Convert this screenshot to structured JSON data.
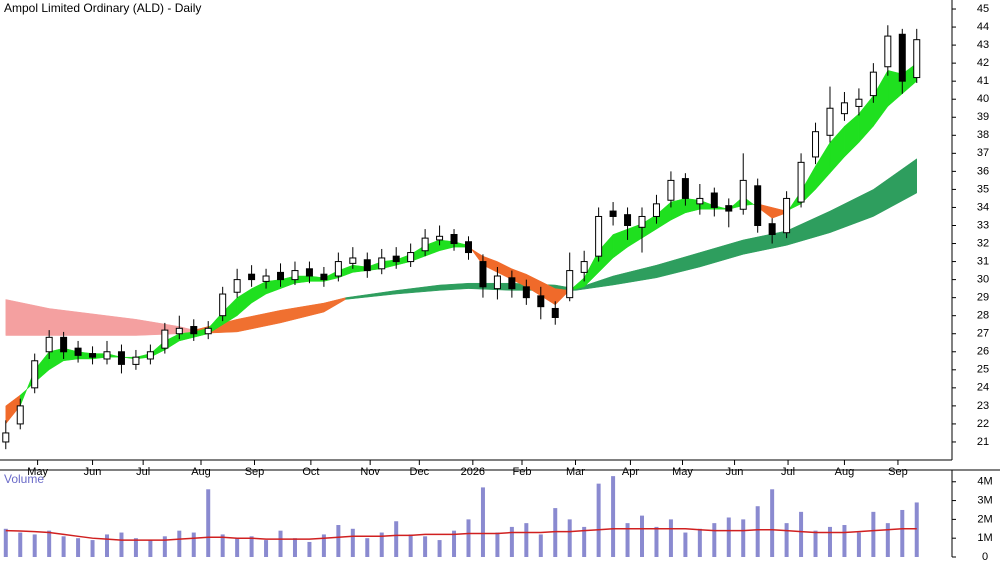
{
  "chart_data": {
    "type": "candlestick",
    "title": "Ampol Limited Ordinary (ALD) - Daily",
    "xlim": [
      -0.4,
      65.3
    ],
    "xticks": [
      {
        "value": 2.2,
        "label": "May"
      },
      {
        "value": 6.0,
        "label": "Jun"
      },
      {
        "value": 9.5,
        "label": "Jul"
      },
      {
        "value": 13.5,
        "label": "Aug"
      },
      {
        "value": 17.2,
        "label": "Sep"
      },
      {
        "value": 21.1,
        "label": "Oct"
      },
      {
        "value": 25.2,
        "label": "Nov"
      },
      {
        "value": 28.6,
        "label": "Dec"
      },
      {
        "value": 32.3,
        "label": "2026"
      },
      {
        "value": 35.7,
        "label": "Feb"
      },
      {
        "value": 39.4,
        "label": "Mar"
      },
      {
        "value": 43.2,
        "label": "Apr"
      },
      {
        "value": 46.8,
        "label": "May"
      },
      {
        "value": 50.4,
        "label": "Jun"
      },
      {
        "value": 54.1,
        "label": "Jul"
      },
      {
        "value": 58.0,
        "label": "Aug"
      },
      {
        "value": 61.7,
        "label": "Sep"
      }
    ],
    "ylim": [
      20,
      45.5
    ],
    "yticks": [
      21,
      22,
      23,
      24,
      25,
      26,
      27,
      28,
      29,
      30,
      31,
      32,
      33,
      34,
      35,
      36,
      37,
      38,
      39,
      40,
      41,
      42,
      43,
      44,
      45
    ],
    "open": [
      21.0,
      22.0,
      24.0,
      26.0,
      26.8,
      26.2,
      25.9,
      25.6,
      26.0,
      25.3,
      25.6,
      26.2,
      27.0,
      27.4,
      27.0,
      28.0,
      29.3,
      30.3,
      29.9,
      30.4,
      30.0,
      30.6,
      30.3,
      30.2,
      30.9,
      31.1,
      30.6,
      31.3,
      31.0,
      31.6,
      32.2,
      32.5,
      32.1,
      31.0,
      29.5,
      30.1,
      29.6,
      29.1,
      28.4,
      29.0,
      30.4,
      31.3,
      33.8,
      33.6,
      32.9,
      33.5,
      34.4,
      35.6,
      34.2,
      34.8,
      34.1,
      33.9,
      35.2,
      33.1,
      32.6,
      34.3,
      36.8,
      38.0,
      39.2,
      39.6,
      40.2,
      41.8,
      43.6,
      41.2
    ],
    "high": [
      22.2,
      23.4,
      25.9,
      27.2,
      27.1,
      26.6,
      26.3,
      26.6,
      26.4,
      26.1,
      26.4,
      27.6,
      28.0,
      27.8,
      27.7,
      29.6,
      30.6,
      30.8,
      30.6,
      30.9,
      31.0,
      31.0,
      30.7,
      31.5,
      31.8,
      31.5,
      31.7,
      31.8,
      32.0,
      32.8,
      33.0,
      32.8,
      32.4,
      31.4,
      30.7,
      30.5,
      30.0,
      29.6,
      28.8,
      31.5,
      31.6,
      34.0,
      34.3,
      34.0,
      34.0,
      34.7,
      36.0,
      35.9,
      35.3,
      35.1,
      34.5,
      37.0,
      35.6,
      33.4,
      34.9,
      37.0,
      38.7,
      40.7,
      40.4,
      40.6,
      42.0,
      44.1,
      43.9,
      43.9
    ],
    "low": [
      20.6,
      21.7,
      23.7,
      25.6,
      25.6,
      25.4,
      25.3,
      25.3,
      24.8,
      25.0,
      25.3,
      25.9,
      26.7,
      26.6,
      26.7,
      27.7,
      29.0,
      29.6,
      29.5,
      29.6,
      29.7,
      29.8,
      29.6,
      29.9,
      30.6,
      30.1,
      30.3,
      30.6,
      30.7,
      31.3,
      31.9,
      31.6,
      31.1,
      29.0,
      28.9,
      29.0,
      28.6,
      27.8,
      27.5,
      28.8,
      29.9,
      31.0,
      33.0,
      32.2,
      31.5,
      33.1,
      34.0,
      34.1,
      33.6,
      33.5,
      32.9,
      33.6,
      32.6,
      32.0,
      32.3,
      34.0,
      36.4,
      37.6,
      38.8,
      39.1,
      39.8,
      41.3,
      40.3,
      40.9
    ],
    "close": [
      21.5,
      23.0,
      25.5,
      26.8,
      26.0,
      25.8,
      25.7,
      26.0,
      25.3,
      25.7,
      26.0,
      27.2,
      27.3,
      27.0,
      27.3,
      29.2,
      30.0,
      30.0,
      30.2,
      30.0,
      30.5,
      30.2,
      30.0,
      31.0,
      31.2,
      30.5,
      31.2,
      31.0,
      31.5,
      32.3,
      32.4,
      32.0,
      31.5,
      29.6,
      30.2,
      29.5,
      29.0,
      28.5,
      27.9,
      30.5,
      31.0,
      33.5,
      33.5,
      33.0,
      33.5,
      34.2,
      35.5,
      34.5,
      34.5,
      34.0,
      33.8,
      35.5,
      33.0,
      32.5,
      34.5,
      36.5,
      38.2,
      39.5,
      39.8,
      40.0,
      41.5,
      43.5,
      41.0,
      43.3
    ],
    "short_ribbon": {
      "color_up": "#1fe01f",
      "color_down": "#f06a2a",
      "fast": [
        22.0,
        23.0,
        25.0,
        26.0,
        26.2,
        26.0,
        25.9,
        25.9,
        25.7,
        25.7,
        25.9,
        26.6,
        27.0,
        27.1,
        27.3,
        28.2,
        29.0,
        29.5,
        29.9,
        30.0,
        30.2,
        30.2,
        30.1,
        30.5,
        30.8,
        30.7,
        31.0,
        31.1,
        31.4,
        31.9,
        32.2,
        32.1,
        31.9,
        30.8,
        30.4,
        30.0,
        29.6,
        29.1,
        28.6,
        29.4,
        30.1,
        31.6,
        32.5,
        32.8,
        33.1,
        33.6,
        34.3,
        34.5,
        34.4,
        34.1,
        33.9,
        34.6,
        34.0,
        33.4,
        33.7,
        34.9,
        36.3,
        37.6,
        38.5,
        39.2,
        40.2,
        41.6,
        41.4,
        42.0
      ],
      "slow": [
        23.0,
        23.6,
        24.3,
        25.0,
        25.5,
        25.6,
        25.6,
        25.7,
        25.7,
        25.6,
        25.7,
        26.1,
        26.6,
        26.8,
        27.0,
        27.5,
        28.0,
        28.7,
        29.2,
        29.5,
        29.8,
        29.9,
        29.9,
        30.1,
        30.4,
        30.5,
        30.6,
        30.8,
        31.0,
        31.3,
        31.6,
        31.8,
        31.8,
        31.3,
        31.0,
        30.6,
        30.3,
        29.9,
        29.5,
        29.4,
        29.6,
        30.4,
        31.2,
        31.8,
        32.3,
        32.8,
        33.3,
        33.7,
        33.9,
        33.9,
        33.9,
        34.1,
        34.2,
        34.0,
        33.8,
        34.2,
        35.0,
        35.9,
        36.8,
        37.6,
        38.5,
        39.6,
        40.3,
        41.0
      ]
    },
    "long_ribbon": [
      {
        "color": "#f4a0a0",
        "x": [
          0,
          3,
          6,
          9,
          12,
          13
        ],
        "upper": [
          28.9,
          28.4,
          28.1,
          27.8,
          27.4,
          27.2
        ],
        "lower": [
          26.9,
          26.9,
          26.9,
          26.9,
          27.0,
          27.0
        ]
      },
      {
        "color": "#f07030",
        "x": [
          13,
          16,
          19,
          22,
          23.5
        ],
        "upper": [
          27.2,
          27.8,
          28.3,
          28.7,
          29.0
        ],
        "lower": [
          27.0,
          27.1,
          27.6,
          28.2,
          28.9
        ]
      },
      {
        "color": "#2e9e5e",
        "x": [
          23.5,
          27,
          30,
          32,
          35,
          38,
          39.4,
          42,
          45,
          48,
          51,
          54,
          57,
          60,
          63
        ],
        "upper": [
          29.0,
          29.4,
          29.7,
          29.8,
          29.8,
          29.7,
          29.5,
          30.2,
          30.8,
          31.5,
          32.2,
          32.7,
          33.8,
          35.0,
          36.7
        ],
        "lower": [
          28.9,
          29.2,
          29.4,
          29.5,
          29.4,
          29.4,
          29.4,
          29.7,
          30.1,
          30.7,
          31.4,
          31.9,
          32.6,
          33.5,
          34.8
        ]
      }
    ],
    "volume": {
      "label": "Volume",
      "color": "#8a8ad0",
      "ylim": [
        0,
        4200000
      ],
      "yticks": [
        {
          "value": 0,
          "label": "0"
        },
        {
          "value": 1000000,
          "label": "1M"
        },
        {
          "value": 2000000,
          "label": "2M"
        },
        {
          "value": 3000000,
          "label": "3M"
        },
        {
          "value": 4000000,
          "label": "4M"
        }
      ],
      "values": [
        1500000,
        1300000,
        1200000,
        1400000,
        1100000,
        1000000,
        900000,
        1200000,
        1300000,
        1000000,
        900000,
        1100000,
        1400000,
        1300000,
        3600000,
        1200000,
        1000000,
        1100000,
        900000,
        1400000,
        1000000,
        800000,
        1200000,
        1700000,
        1500000,
        1000000,
        1300000,
        1900000,
        1200000,
        1100000,
        900000,
        1400000,
        2000000,
        3700000,
        1300000,
        1600000,
        1800000,
        1200000,
        2600000,
        2000000,
        1600000,
        3900000,
        4300000,
        1800000,
        2200000,
        1600000,
        2000000,
        1300000,
        1500000,
        1800000,
        2100000,
        2000000,
        2700000,
        3600000,
        1800000,
        2400000,
        1400000,
        1600000,
        1700000,
        1300000,
        2400000,
        1800000,
        2500000,
        2900000
      ],
      "ma": {
        "color": "#d02020",
        "values": [
          1400000,
          1380000,
          1350000,
          1300000,
          1200000,
          1100000,
          1000000,
          950000,
          900000,
          900000,
          900000,
          900000,
          950000,
          1000000,
          1050000,
          1050000,
          1000000,
          1000000,
          950000,
          950000,
          950000,
          950000,
          1000000,
          1050000,
          1100000,
          1100000,
          1100000,
          1150000,
          1150000,
          1200000,
          1200000,
          1200000,
          1250000,
          1250000,
          1250000,
          1300000,
          1300000,
          1300000,
          1350000,
          1350000,
          1400000,
          1450000,
          1500000,
          1500000,
          1500000,
          1500000,
          1500000,
          1500000,
          1450000,
          1400000,
          1400000,
          1400000,
          1450000,
          1450000,
          1400000,
          1350000,
          1300000,
          1300000,
          1300000,
          1350000,
          1400000,
          1450000,
          1500000,
          1500000
        ]
      }
    }
  }
}
